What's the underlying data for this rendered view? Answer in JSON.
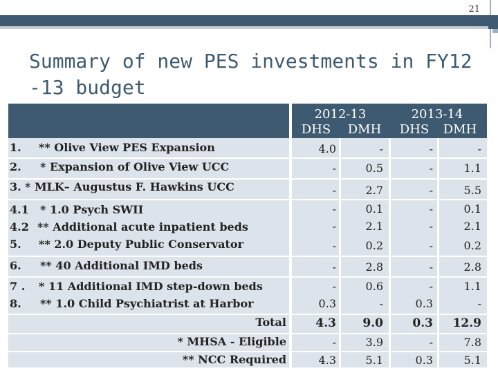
{
  "slide_number": "21",
  "title": "Summary of new PES investments in FY12 -13 budget",
  "header": {
    "years": [
      "2012-13",
      "2013-14"
    ],
    "columns": [
      "DHS",
      "DMH",
      "DHS",
      "DMH"
    ]
  },
  "items": [
    {
      "num": "1.",
      "label": "** Olive View PES Expansion"
    },
    {
      "num": "2.",
      "label": "* Expansion of Olive View UCC"
    },
    {
      "num": "3.",
      "label": "* MLK– Augustus F. Hawkins UCC"
    },
    {
      "num": "4.1",
      "label": "* 1.0 Psych SWII"
    },
    {
      "num": "4.2",
      "label": "** Additional acute inpatient beds"
    },
    {
      "num": "5.",
      "label": "** 2.0 Deputy Public Conservator"
    },
    {
      "num": "6.",
      "label": "** 40 Additional IMD beds"
    },
    {
      "num": "7 .",
      "label": "* 11 Additional IMD step-down beds"
    },
    {
      "num": "8.",
      "label": "** 1.0 Child Psychiatrist at Harbor"
    }
  ],
  "rows": [
    [
      "4.0",
      "-",
      "-",
      "-"
    ],
    [
      "-",
      "0.5",
      "-",
      "1.1"
    ],
    [
      "-",
      "2.7",
      "-",
      "5.5"
    ],
    [
      "-",
      "0.1",
      "-",
      "0.1"
    ],
    [
      "-",
      "2.1",
      "-",
      "2.1"
    ],
    [
      "-",
      "0.2",
      "-",
      "0.2"
    ],
    [
      "-",
      "2.8",
      "-",
      "2.8"
    ],
    [
      "-",
      "0.6",
      "-",
      "1.1"
    ],
    [
      "0.3",
      "-",
      "0.3",
      "-"
    ]
  ],
  "summary": [
    {
      "label": "Total",
      "values": [
        "4.3",
        "9.0",
        "0.3",
        "12.9"
      ]
    },
    {
      "label": "* MHSA - Eligible",
      "values": [
        "-",
        "3.9",
        "-",
        "7.8"
      ]
    },
    {
      "label": "** NCC Required",
      "values": [
        "4.3",
        "5.1",
        "0.3",
        "5.1"
      ]
    }
  ]
}
